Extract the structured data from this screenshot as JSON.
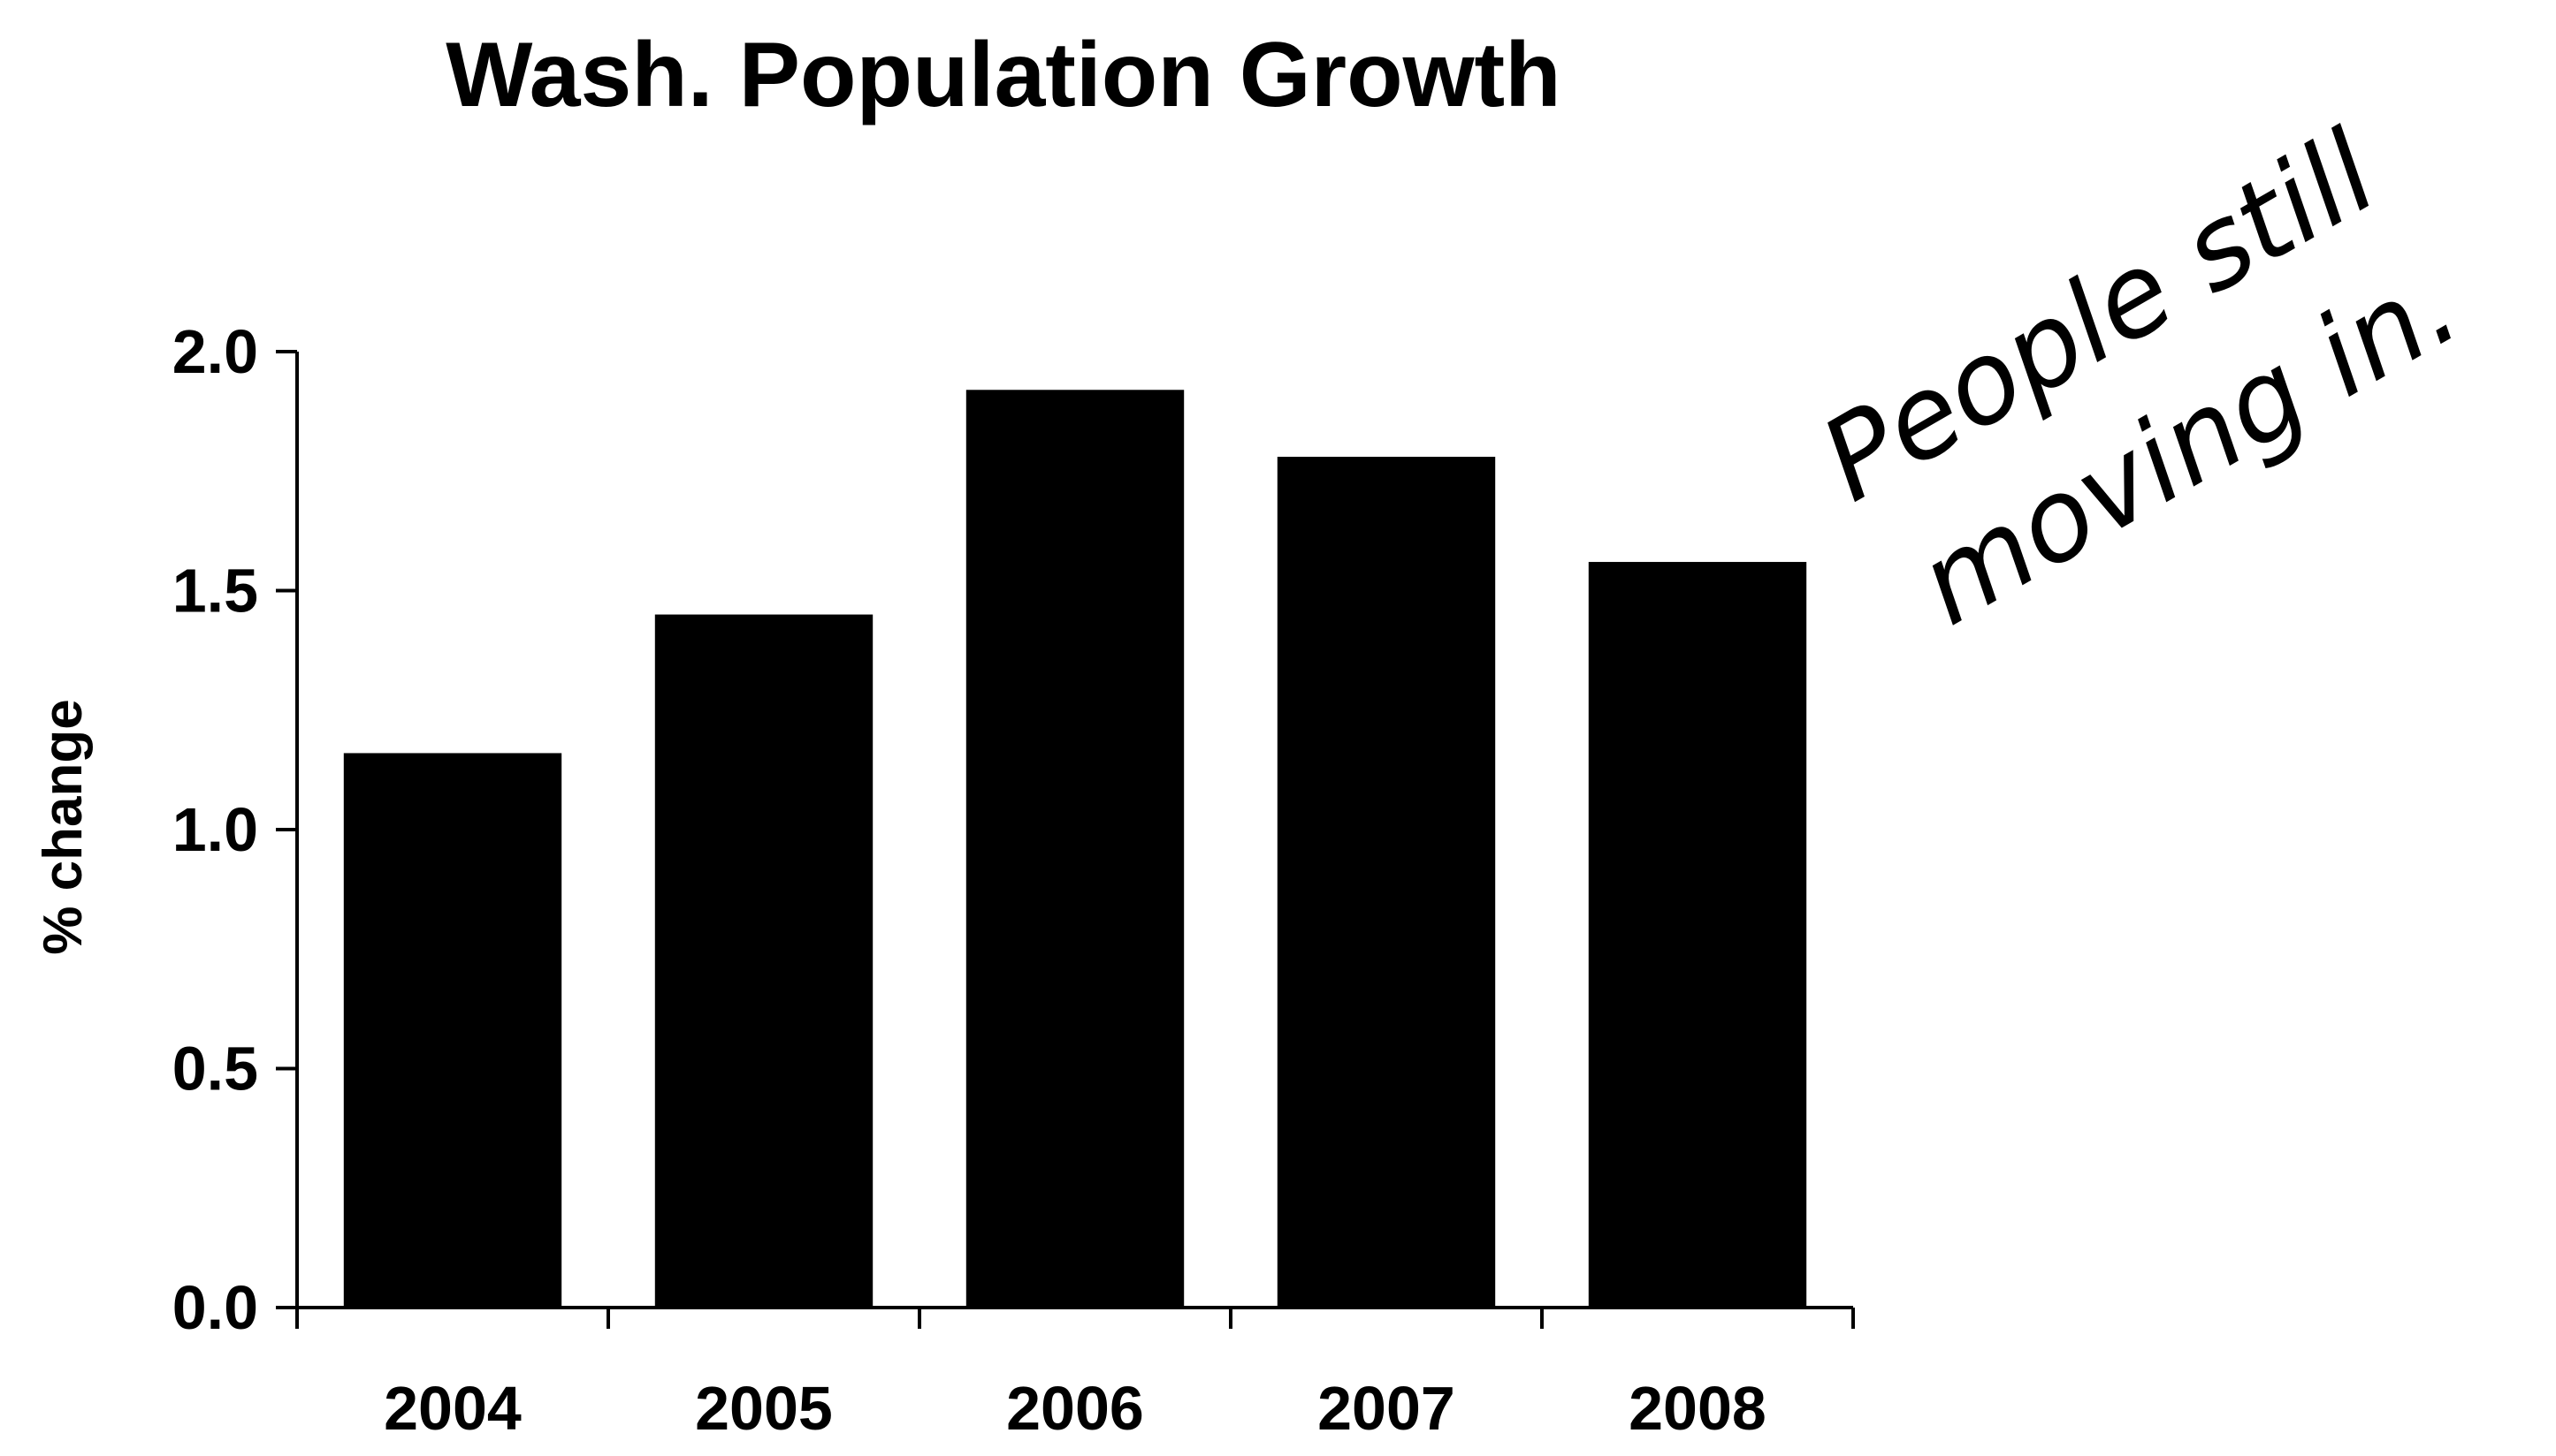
{
  "chart_data": {
    "type": "bar",
    "title": "Wash. Population Growth",
    "xlabel": "",
    "ylabel": "% change",
    "categories": [
      "2004",
      "2005",
      "2006",
      "2007",
      "2008"
    ],
    "values": [
      1.16,
      1.45,
      1.92,
      1.78,
      1.56
    ],
    "ylim": [
      0,
      2.0
    ],
    "yticks": [
      0.0,
      0.5,
      1.0,
      1.5,
      2.0
    ],
    "ytick_labels": [
      "0.0",
      "0.5",
      "1.0",
      "1.5",
      "2.0"
    ],
    "grid": false,
    "bar_color": "#000000",
    "annotations": [
      "People still",
      "moving in."
    ]
  }
}
